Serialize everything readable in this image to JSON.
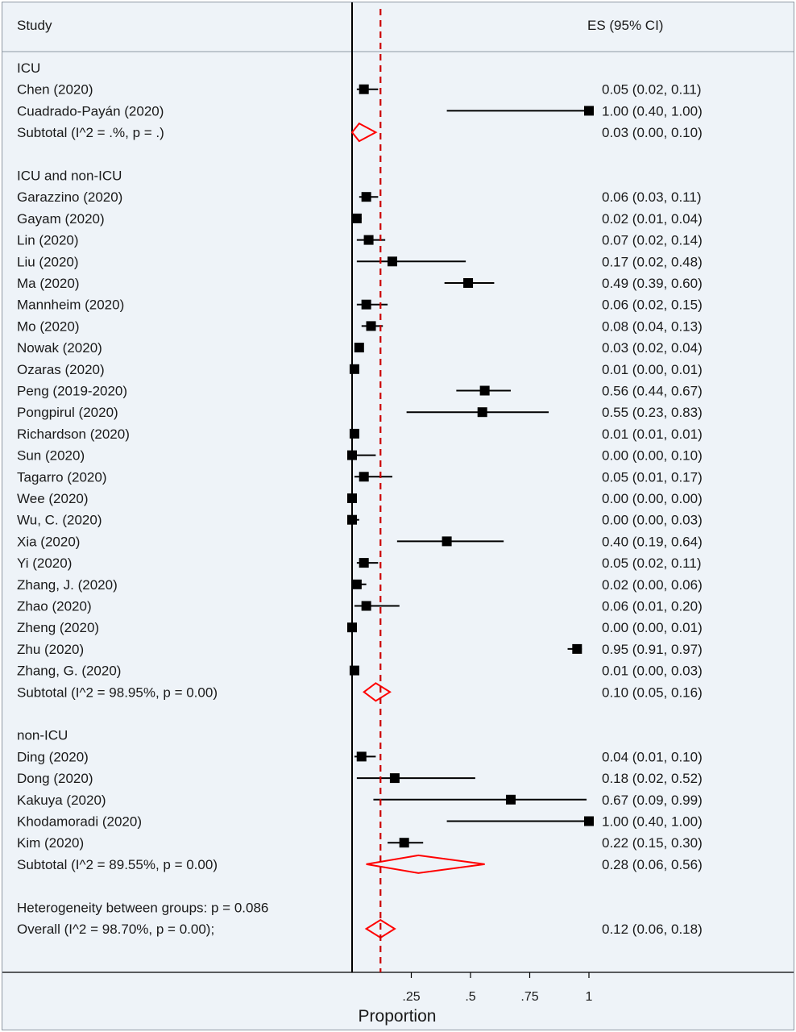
{
  "header": {
    "study_label": "Study",
    "es_label": "ES (95% CI)"
  },
  "colors": {
    "background": "#eef3f8",
    "marker": "#000000",
    "diamond": "#ff0000",
    "overall_line": "#cc0000"
  },
  "chart_data": {
    "type": "forest",
    "x_axis": {
      "label": "Proportion",
      "range": [
        0,
        1
      ],
      "ticks": [
        {
          "value": 0.25,
          "label": ".25"
        },
        {
          "value": 0.5,
          "label": ".5"
        },
        {
          "value": 0.75,
          "label": ".75"
        },
        {
          "value": 1,
          "label": "1"
        }
      ]
    },
    "overall_line": 0.12,
    "groups": [
      {
        "name": "ICU",
        "studies": [
          {
            "study": "Chen (2020)",
            "es": 0.05,
            "lo": 0.02,
            "hi": 0.11,
            "text": "0.05 (0.02, 0.11)"
          },
          {
            "study": "Cuadrado-Payán (2020)",
            "es": 1.0,
            "lo": 0.4,
            "hi": 1.0,
            "text": "1.00 (0.40, 1.00)"
          }
        ],
        "subtotal": {
          "label": "Subtotal  (I^2 = .%, p = .)",
          "es": 0.03,
          "lo": 0.0,
          "hi": 0.1,
          "text": "0.03 (0.00, 0.10)"
        }
      },
      {
        "name": "ICU and non-ICU",
        "studies": [
          {
            "study": "Garazzino (2020)",
            "es": 0.06,
            "lo": 0.03,
            "hi": 0.11,
            "text": "0.06 (0.03, 0.11)"
          },
          {
            "study": "Gayam (2020)",
            "es": 0.02,
            "lo": 0.01,
            "hi": 0.04,
            "text": "0.02 (0.01, 0.04)"
          },
          {
            "study": "Lin (2020)",
            "es": 0.07,
            "lo": 0.02,
            "hi": 0.14,
            "text": "0.07 (0.02, 0.14)"
          },
          {
            "study": "Liu (2020)",
            "es": 0.17,
            "lo": 0.02,
            "hi": 0.48,
            "text": "0.17 (0.02, 0.48)"
          },
          {
            "study": "Ma (2020)",
            "es": 0.49,
            "lo": 0.39,
            "hi": 0.6,
            "text": "0.49 (0.39, 0.60)"
          },
          {
            "study": "Mannheim (2020)",
            "es": 0.06,
            "lo": 0.02,
            "hi": 0.15,
            "text": "0.06 (0.02, 0.15)"
          },
          {
            "study": "Mo (2020)",
            "es": 0.08,
            "lo": 0.04,
            "hi": 0.13,
            "text": "0.08 (0.04, 0.13)"
          },
          {
            "study": "Nowak (2020)",
            "es": 0.03,
            "lo": 0.02,
            "hi": 0.04,
            "text": "0.03 (0.02, 0.04)"
          },
          {
            "study": "Ozaras (2020)",
            "es": 0.01,
            "lo": 0.0,
            "hi": 0.01,
            "text": "0.01 (0.00, 0.01)"
          },
          {
            "study": "Peng (2019-2020)",
            "es": 0.56,
            "lo": 0.44,
            "hi": 0.67,
            "text": "0.56 (0.44, 0.67)"
          },
          {
            "study": "Pongpirul (2020)",
            "es": 0.55,
            "lo": 0.23,
            "hi": 0.83,
            "text": "0.55 (0.23, 0.83)"
          },
          {
            "study": "Richardson (2020)",
            "es": 0.01,
            "lo": 0.01,
            "hi": 0.01,
            "text": "0.01 (0.01, 0.01)"
          },
          {
            "study": "Sun (2020)",
            "es": 0.0,
            "lo": 0.0,
            "hi": 0.1,
            "text": "0.00 (0.00, 0.10)"
          },
          {
            "study": "Tagarro (2020)",
            "es": 0.05,
            "lo": 0.01,
            "hi": 0.17,
            "text": "0.05 (0.01, 0.17)"
          },
          {
            "study": "Wee (2020)",
            "es": 0.0,
            "lo": 0.0,
            "hi": 0.0,
            "text": "0.00 (0.00, 0.00)"
          },
          {
            "study": "Wu, C. (2020)",
            "es": 0.0,
            "lo": 0.0,
            "hi": 0.03,
            "text": "0.00 (0.00, 0.03)"
          },
          {
            "study": "Xia (2020)",
            "es": 0.4,
            "lo": 0.19,
            "hi": 0.64,
            "text": "0.40 (0.19, 0.64)"
          },
          {
            "study": "Yi (2020)",
            "es": 0.05,
            "lo": 0.02,
            "hi": 0.11,
            "text": "0.05 (0.02, 0.11)"
          },
          {
            "study": "Zhang, J. (2020)",
            "es": 0.02,
            "lo": 0.0,
            "hi": 0.06,
            "text": "0.02 (0.00, 0.06)"
          },
          {
            "study": "Zhao (2020)",
            "es": 0.06,
            "lo": 0.01,
            "hi": 0.2,
            "text": "0.06 (0.01, 0.20)"
          },
          {
            "study": "Zheng (2020)",
            "es": 0.0,
            "lo": 0.0,
            "hi": 0.01,
            "text": "0.00 (0.00, 0.01)"
          },
          {
            "study": "Zhu (2020)",
            "es": 0.95,
            "lo": 0.91,
            "hi": 0.97,
            "text": "0.95 (0.91, 0.97)"
          },
          {
            "study": "Zhang, G. (2020)",
            "es": 0.01,
            "lo": 0.0,
            "hi": 0.03,
            "text": "0.01 (0.00, 0.03)"
          }
        ],
        "subtotal": {
          "label": "Subtotal  (I^2 = 98.95%, p = 0.00)",
          "es": 0.1,
          "lo": 0.05,
          "hi": 0.16,
          "text": "0.10 (0.05, 0.16)"
        }
      },
      {
        "name": "non-ICU",
        "studies": [
          {
            "study": "Ding  (2020)",
            "es": 0.04,
            "lo": 0.01,
            "hi": 0.1,
            "text": "0.04 (0.01, 0.10)"
          },
          {
            "study": "Dong (2020)",
            "es": 0.18,
            "lo": 0.02,
            "hi": 0.52,
            "text": "0.18 (0.02, 0.52)"
          },
          {
            "study": "Kakuya (2020)",
            "es": 0.67,
            "lo": 0.09,
            "hi": 0.99,
            "text": "0.67 (0.09, 0.99)"
          },
          {
            "study": "Khodamoradi (2020)",
            "es": 1.0,
            "lo": 0.4,
            "hi": 1.0,
            "text": "1.00 (0.40, 1.00)"
          },
          {
            "study": "Kim (2020)",
            "es": 0.22,
            "lo": 0.15,
            "hi": 0.3,
            "text": "0.22 (0.15, 0.30)"
          }
        ],
        "subtotal": {
          "label": "Subtotal  (I^2 = 89.55%, p = 0.00)",
          "es": 0.28,
          "lo": 0.06,
          "hi": 0.56,
          "text": "0.28 (0.06, 0.56)"
        }
      }
    ],
    "heterogeneity": "Heterogeneity between groups: p = 0.086",
    "overall": {
      "label": "Overall  (I^2 = 98.70%, p = 0.00);",
      "es": 0.12,
      "lo": 0.06,
      "hi": 0.18,
      "text": "0.12 (0.06, 0.18)"
    }
  }
}
